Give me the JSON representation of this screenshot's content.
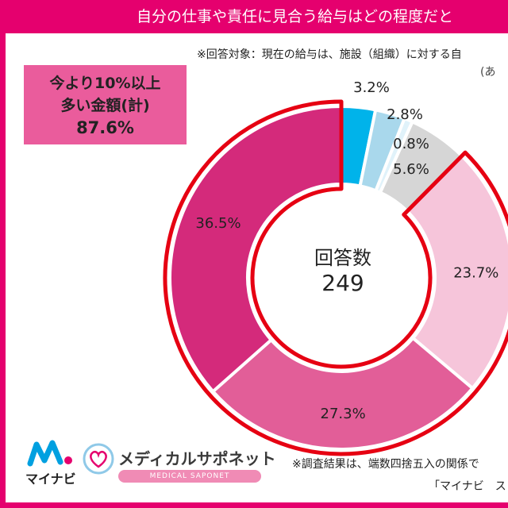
{
  "header": {
    "title": "自分の仕事や責任に見合う給与はどの程度だと"
  },
  "notes": {
    "target": "※回答対象：現在の給与は、施設（組織）に対する自",
    "target_cont": "(あ",
    "rounding": "※調査結果は、端数四捨五入の関係で",
    "source": "「マイナビ　ス"
  },
  "callout": {
    "line1": "今より10%以上",
    "line2": "多い金額(計)",
    "value": "87.6%"
  },
  "logos": {
    "mynavi_text": "マイナビ",
    "saponet_name": "メディカルサポネット",
    "saponet_sub": "MEDICAL SAPONET"
  },
  "colors": {
    "brand": "#e5006e",
    "callout_bg": "#ea5c9c",
    "highlight_outline": "#e60012"
  },
  "chart_data": {
    "type": "pie",
    "style": "donut",
    "center_label": "回答数",
    "center_value": "249",
    "highlight_group_label": "今より10%以上多い金額(計)",
    "highlight_group_value": 87.6,
    "slices": [
      {
        "value": 3.2,
        "label": "3.2%",
        "color": "#00b3ea"
      },
      {
        "value": 2.8,
        "label": "2.8%",
        "color": "#a9d8ec"
      },
      {
        "value": 0.8,
        "label": "0.8%",
        "color": "#e0f2fa"
      },
      {
        "value": 5.6,
        "label": "5.6%",
        "color": "#d6d6d6"
      },
      {
        "value": 23.7,
        "label": "23.7%",
        "color": "#f6c5da"
      },
      {
        "value": 27.3,
        "label": "27.3%",
        "color": "#e25e98"
      },
      {
        "value": 36.5,
        "label": "36.5%",
        "color": "#d42a7b"
      }
    ]
  }
}
